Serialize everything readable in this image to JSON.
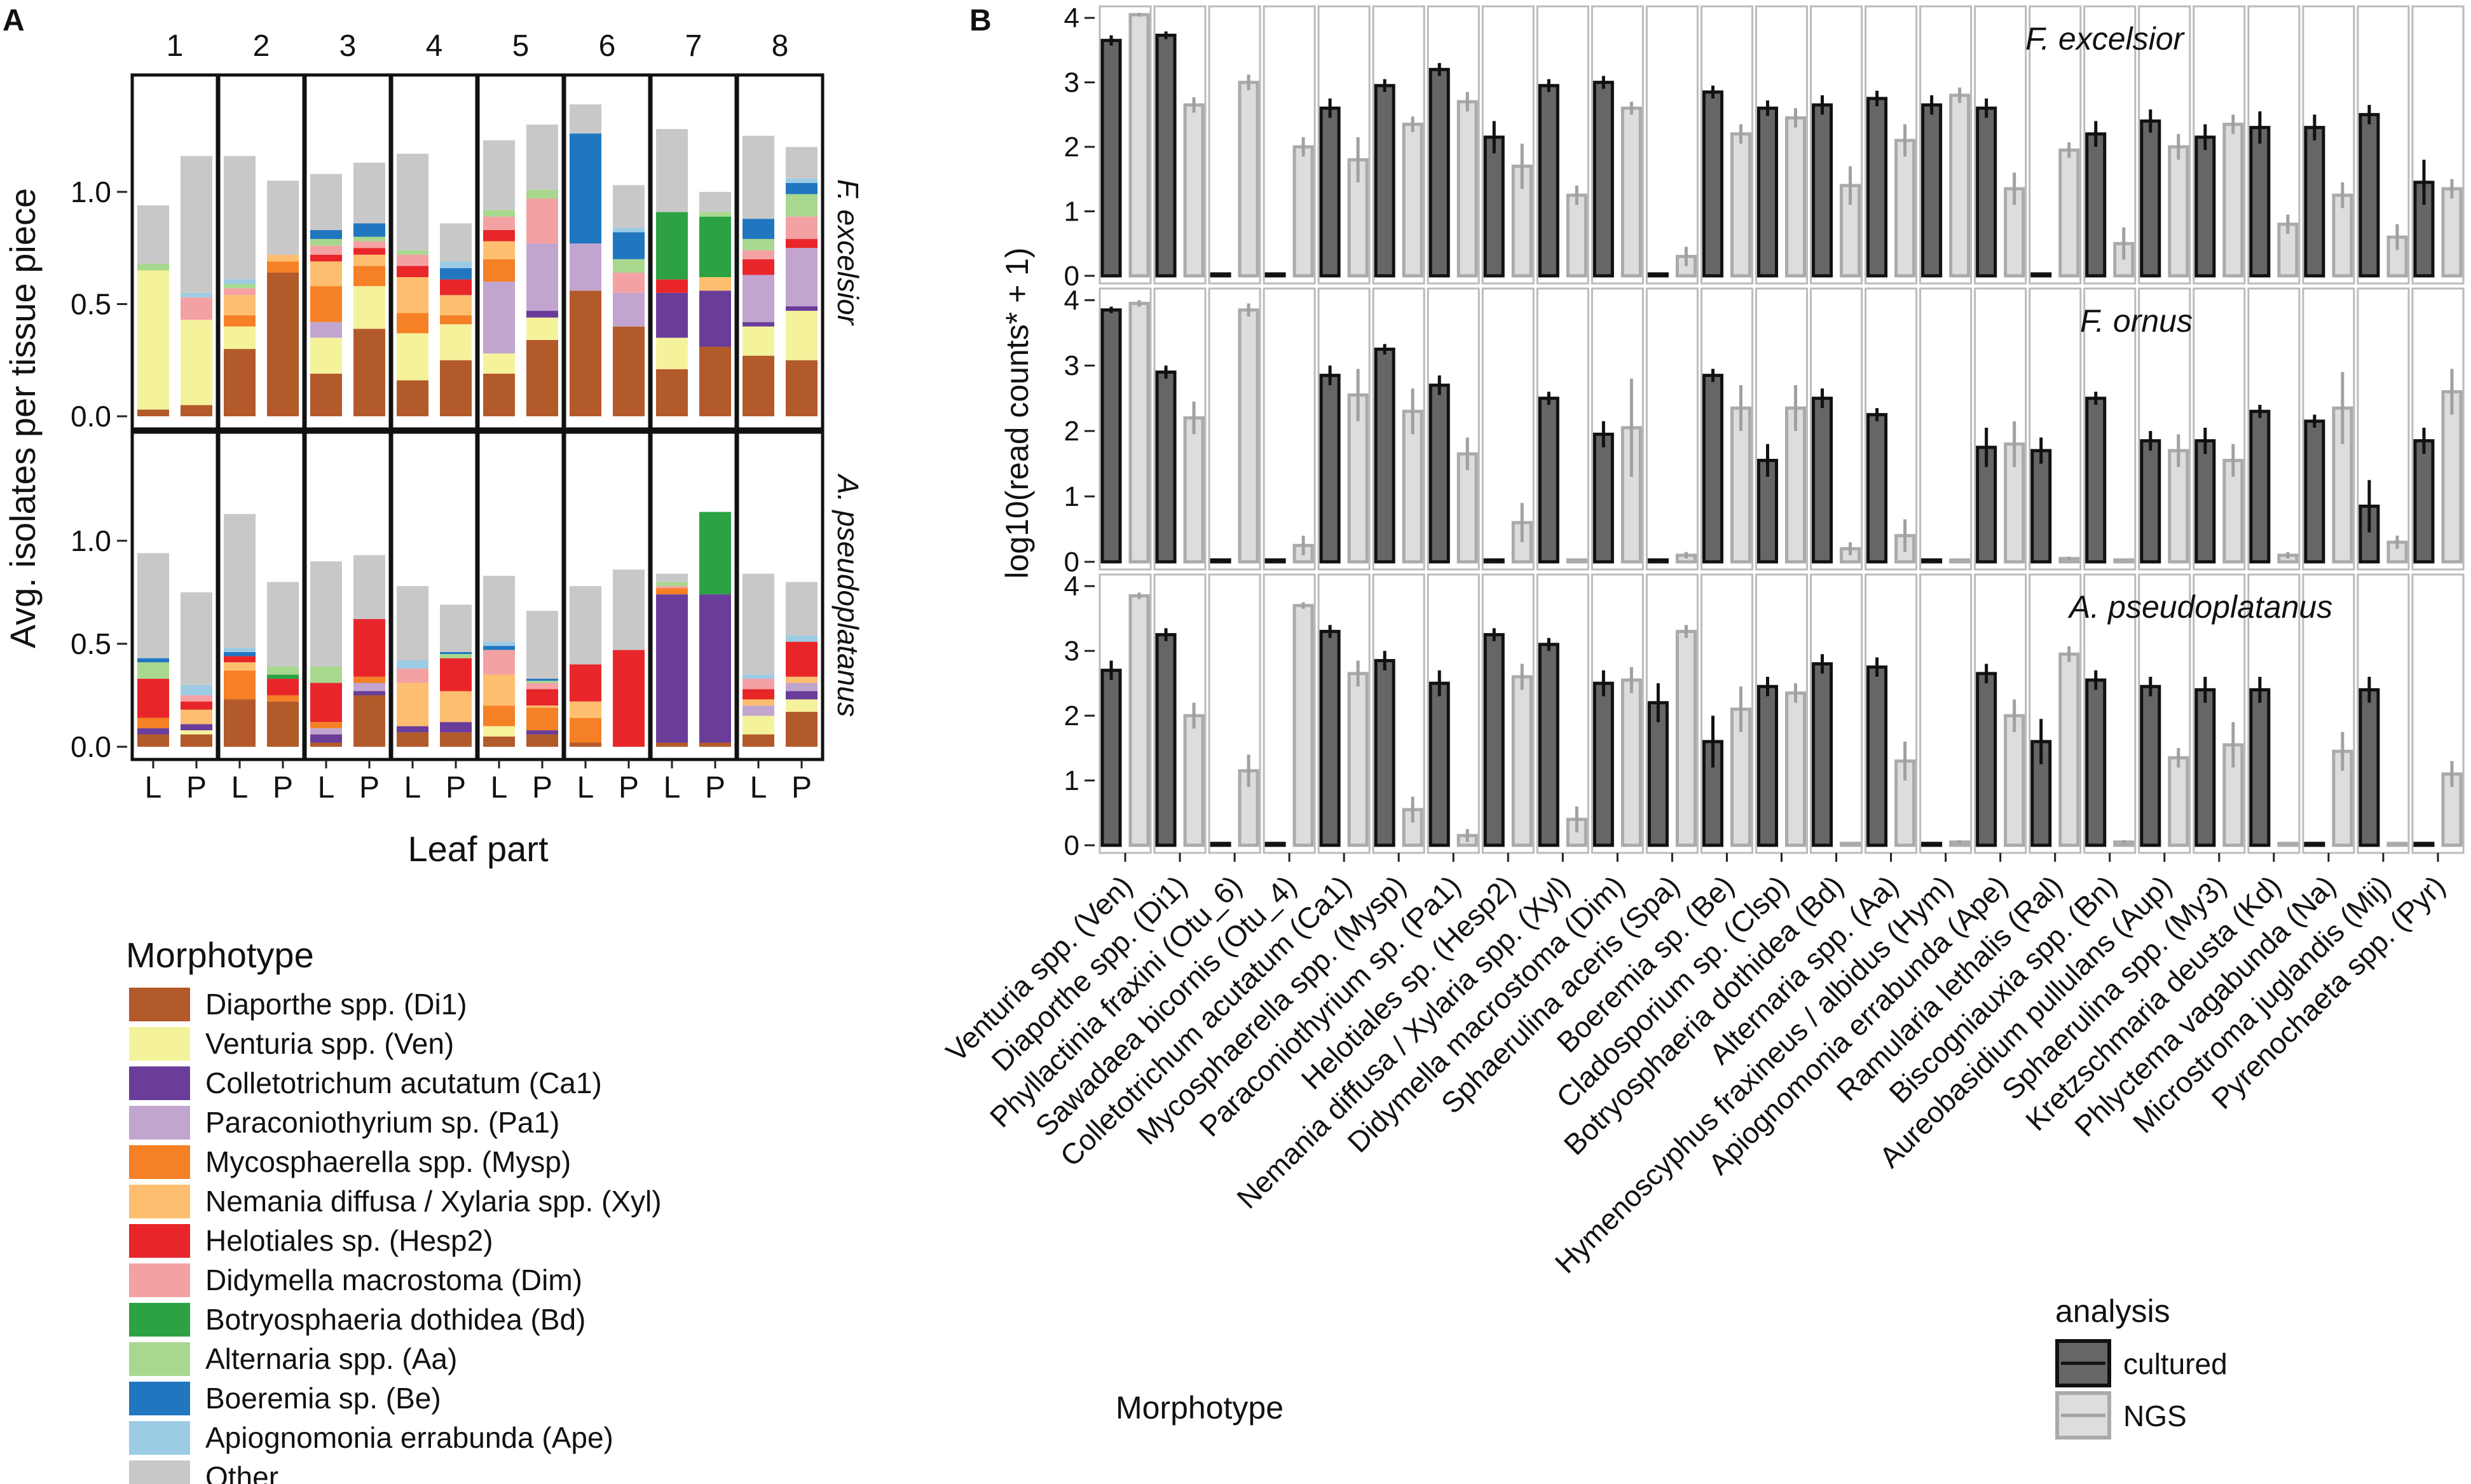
{
  "chart_data": [
    {
      "panel": "A",
      "type": "bar",
      "stacked": true,
      "ylabel": "Avg. isolates per tissue piece",
      "xlabel": "Leaf part",
      "ylim": [
        0,
        1.45
      ],
      "yticks": [
        "0.0",
        "0.5",
        "1.0"
      ],
      "facet_columns": [
        "1",
        "2",
        "3",
        "4",
        "5",
        "6",
        "7",
        "8"
      ],
      "facet_rows": [
        "F. excelsior",
        "A. pseudoplatanus"
      ],
      "x_categories": [
        "L",
        "P"
      ],
      "legend_title": "Morphotype",
      "morphotypes": [
        {
          "label": "Diaporthe spp. (Di1)",
          "color": "#B35A2A"
        },
        {
          "label": "Venturia spp. (Ven)",
          "color": "#F5F29C"
        },
        {
          "label": "Colletotrichum acutatum (Ca1)",
          "color": "#6A3D9A"
        },
        {
          "label": "Paraconiothyrium sp. (Pa1)",
          "color": "#C2A5CF"
        },
        {
          "label": "Mycosphaerella spp. (Mysp)",
          "color": "#F58025"
        },
        {
          "label": "Nemania diffusa / Xylaria spp. (Xyl)",
          "color": "#FDBF6F"
        },
        {
          "label": "Helotiales sp. (Hesp2)",
          "color": "#E8262A"
        },
        {
          "label": "Didymella macrostoma (Dim)",
          "color": "#F4A1A4"
        },
        {
          "label": "Botryosphaeria dothidea (Bd)",
          "color": "#2CA244"
        },
        {
          "label": "Alternaria spp. (Aa)",
          "color": "#A8D88E"
        },
        {
          "label": "Boeremia sp. (Be)",
          "color": "#2176C0"
        },
        {
          "label": "Apiognomonia errabunda (Ape)",
          "color": "#9CCBE4"
        },
        {
          "label": "Other",
          "color": "#C8C8C8"
        }
      ],
      "stacks_note": "segment values listed bottom-up in morphotype order; L then P for each numbered site",
      "stacks": {
        "F. excelsior": [
          [
            [
              0.03,
              0.62,
              0,
              0,
              0,
              0,
              0,
              0,
              0,
              0.03,
              0,
              0,
              0.26
            ],
            [
              0.05,
              0.38,
              0,
              0,
              0,
              0,
              0,
              0.1,
              0,
              0,
              0,
              0.02,
              0.61
            ]
          ],
          [
            [
              0.3,
              0.1,
              0,
              0,
              0.05,
              0.09,
              0,
              0.03,
              0,
              0.02,
              0,
              0.02,
              0.55
            ],
            [
              0.64,
              0,
              0,
              0,
              0.05,
              0.03,
              0,
              0,
              0,
              0,
              0,
              0,
              0.33
            ]
          ],
          [
            [
              0.19,
              0.16,
              0,
              0.07,
              0.16,
              0.11,
              0.03,
              0.04,
              0,
              0.03,
              0.04,
              0,
              0.25
            ],
            [
              0.39,
              0.19,
              0,
              0,
              0.09,
              0.05,
              0.03,
              0.03,
              0,
              0.02,
              0.06,
              0,
              0.27
            ]
          ],
          [
            [
              0.16,
              0.21,
              0,
              0,
              0.09,
              0.16,
              0.05,
              0.05,
              0,
              0.02,
              0,
              0,
              0.43
            ],
            [
              0.25,
              0.16,
              0,
              0,
              0.04,
              0.09,
              0.07,
              0,
              0,
              0,
              0.05,
              0.03,
              0.17
            ]
          ],
          [
            [
              0.19,
              0.09,
              0,
              0.32,
              0.1,
              0.08,
              0.05,
              0.06,
              0,
              0.03,
              0,
              0,
              0.31
            ],
            [
              0.34,
              0.1,
              0.03,
              0.3,
              0,
              0,
              0,
              0.2,
              0,
              0.04,
              0,
              0,
              0.29
            ]
          ],
          [
            [
              0.56,
              0,
              0,
              0.21,
              0,
              0,
              0,
              0,
              0,
              0,
              0.49,
              0,
              0.13
            ],
            [
              0.4,
              0,
              0,
              0.15,
              0,
              0,
              0,
              0.09,
              0,
              0.06,
              0.12,
              0.02,
              0.19
            ]
          ],
          [
            [
              0.21,
              0.14,
              0.2,
              0,
              0,
              0,
              0.06,
              0,
              0.3,
              0,
              0,
              0,
              0.37
            ],
            [
              0.31,
              0,
              0.25,
              0,
              0,
              0.06,
              0,
              0,
              0.27,
              0.02,
              0,
              0,
              0.09
            ]
          ],
          [
            [
              0.27,
              0.13,
              0.02,
              0.21,
              0,
              0,
              0.07,
              0.04,
              0,
              0.05,
              0.09,
              0,
              0.37
            ],
            [
              0.25,
              0.22,
              0.02,
              0.26,
              0,
              0,
              0.04,
              0.1,
              0,
              0.1,
              0.05,
              0.02,
              0.14
            ]
          ]
        ],
        "A. pseudoplatanus": [
          [
            [
              0.06,
              0,
              0.03,
              0,
              0.05,
              0,
              0.19,
              0,
              0,
              0.08,
              0.02,
              0,
              0.51
            ],
            [
              0.06,
              0.02,
              0.03,
              0,
              0,
              0.07,
              0.04,
              0.03,
              0,
              0,
              0,
              0.05,
              0.45
            ]
          ],
          [
            [
              0.23,
              0,
              0,
              0,
              0.14,
              0.04,
              0.03,
              0,
              0,
              0,
              0.02,
              0.02,
              0.65
            ],
            [
              0.22,
              0,
              0,
              0,
              0.03,
              0,
              0.08,
              0,
              0.02,
              0.04,
              0,
              0,
              0.41
            ]
          ],
          [
            [
              0.02,
              0,
              0.04,
              0.03,
              0.03,
              0,
              0.19,
              0,
              0,
              0.08,
              0,
              0,
              0.51
            ],
            [
              0.25,
              0,
              0.02,
              0.04,
              0.03,
              0,
              0.28,
              0,
              0,
              0,
              0,
              0,
              0.31
            ]
          ],
          [
            [
              0.07,
              0,
              0.03,
              0,
              0,
              0.21,
              0,
              0.07,
              0,
              0,
              0,
              0.04,
              0.36
            ],
            [
              0.07,
              0,
              0.05,
              0,
              0,
              0.15,
              0.16,
              0,
              0,
              0.02,
              0.01,
              0,
              0.23
            ]
          ],
          [
            [
              0.05,
              0.05,
              0,
              0,
              0.1,
              0.15,
              0,
              0.12,
              0,
              0,
              0.02,
              0.02,
              0.32
            ],
            [
              0.06,
              0,
              0.02,
              0,
              0.11,
              0.01,
              0.08,
              0.03,
              0,
              0.01,
              0.01,
              0,
              0.33
            ]
          ],
          [
            [
              0.02,
              0,
              0,
              0,
              0.12,
              0.08,
              0.18,
              0,
              0,
              0,
              0,
              0,
              0.38
            ],
            [
              0,
              0,
              0,
              0,
              0,
              0,
              0.47,
              0,
              0,
              0,
              0,
              0,
              0.39
            ]
          ],
          [
            [
              0.02,
              0,
              0.72,
              0,
              0.03,
              0,
              0,
              0.01,
              0,
              0.02,
              0,
              0,
              0.04
            ],
            [
              0.02,
              0,
              0.72,
              0,
              0,
              0,
              0,
              0,
              0.4,
              0,
              0,
              0,
              0
            ]
          ],
          [
            [
              0.06,
              0.09,
              0,
              0.05,
              0,
              0.03,
              0.05,
              0.05,
              0,
              0,
              0,
              0.02,
              0.49
            ],
            [
              0.17,
              0.06,
              0.04,
              0.04,
              0,
              0.03,
              0.17,
              0,
              0,
              0,
              0,
              0.03,
              0.26
            ]
          ]
        ]
      }
    },
    {
      "panel": "B",
      "type": "bar",
      "ylabel": "log10(read counts* + 1)",
      "xlabel": "Morphotype",
      "ylim": [
        0,
        4.15
      ],
      "yticks": [
        "0",
        "1",
        "2",
        "3",
        "4"
      ],
      "legend_title": "analysis",
      "series_names": [
        "cultured",
        "NGS"
      ],
      "series_colors": {
        "cultured_fill": "#666666",
        "cultured_edge": "#111111",
        "ngs_fill": "#DDDDDD",
        "ngs_edge": "#AAAAAA",
        "cultured_err": "#111111",
        "ngs_err": "#A0A0A0"
      },
      "categories": [
        "Venturia spp. (Ven)",
        "Diaporthe spp. (Di1)",
        "Phyllactinia fraxini (Otu_6)",
        "Sawadaea bicornis (Otu_4)",
        "Colletotrichum acutatum (Ca1)",
        "Mycosphaerella spp. (Mysp)",
        "Paraconiothyrium sp. (Pa1)",
        "Helotiales sp. (Hesp2)",
        "Nemania diffusa / Xylaria spp. (Xyl)",
        "Didymella macrostoma (Dim)",
        "Sphaerulina aceris (Spa)",
        "Boeremia sp. (Be)",
        "Cladosporium sp. (Clsp)",
        "Botryosphaeria dothidea (Bd)",
        "Alternaria spp. (Aa)",
        "Hymenoscyphus fraxineus / albidus (Hym)",
        "Apiognomonia errabunda (Ape)",
        "Ramularia lethalis (Ral)",
        "Biscogniauxia spp. (Bn)",
        "Aureobasidium pullulans (Aup)",
        "Sphaerulina spp. (My3)",
        "Kretzschmaria deusta (Kd)",
        "Phlyctema vagabunda (Na)",
        "Microstroma juglandis (Mij)",
        "Pyrenochaeta spp. (Pyr)"
      ],
      "facets": [
        {
          "label": "F. excelsior",
          "cultured": [
            3.65,
            3.73,
            0,
            0,
            2.6,
            2.95,
            3.2,
            2.15,
            2.95,
            3.0,
            0,
            2.85,
            2.6,
            2.65,
            2.75,
            2.65,
            2.6,
            0,
            2.2,
            2.4,
            2.15,
            2.3,
            2.3,
            2.5,
            1.45
          ],
          "cultured_err": [
            0.08,
            0.06,
            0,
            0,
            0.15,
            0.1,
            0.1,
            0.25,
            0.1,
            0.1,
            0,
            0.1,
            0.12,
            0.15,
            0.12,
            0.15,
            0.15,
            0,
            0.2,
            0.18,
            0.2,
            0.25,
            0.2,
            0.15,
            0.35
          ],
          "ngs": [
            4.05,
            2.65,
            3.0,
            2.0,
            1.8,
            2.35,
            2.7,
            1.7,
            1.25,
            2.6,
            0.3,
            2.2,
            2.45,
            1.4,
            2.1,
            2.8,
            1.35,
            1.95,
            0.5,
            2.0,
            2.35,
            0.8,
            1.25,
            0.6,
            1.35
          ],
          "ngs_err": [
            0.03,
            0.12,
            0.12,
            0.15,
            0.35,
            0.12,
            0.15,
            0.35,
            0.15,
            0.1,
            0.15,
            0.15,
            0.15,
            0.3,
            0.25,
            0.12,
            0.25,
            0.12,
            0.25,
            0.2,
            0.15,
            0.15,
            0.2,
            0.2,
            0.15
          ]
        },
        {
          "label": "F. ornus",
          "cultured": [
            3.85,
            2.9,
            0,
            0,
            2.85,
            3.25,
            2.7,
            0,
            2.5,
            1.95,
            0,
            2.85,
            1.55,
            2.5,
            2.25,
            0,
            1.75,
            1.7,
            2.5,
            1.85,
            1.85,
            2.3,
            2.15,
            0.85,
            1.85
          ],
          "cultured_err": [
            0.05,
            0.1,
            0,
            0,
            0.15,
            0.08,
            0.15,
            0,
            0.1,
            0.2,
            0,
            0.1,
            0.25,
            0.15,
            0.1,
            0,
            0.3,
            0.2,
            0.1,
            0.15,
            0.2,
            0.1,
            0.1,
            0.4,
            0.2
          ],
          "ngs": [
            3.95,
            2.2,
            3.85,
            0.25,
            2.55,
            2.3,
            1.65,
            0.6,
            0,
            2.05,
            0.1,
            2.35,
            2.35,
            0.2,
            0.4,
            0,
            1.8,
            0.05,
            0,
            1.7,
            1.55,
            0.1,
            2.35,
            0.3,
            2.6
          ],
          "ngs_err": [
            0.05,
            0.25,
            0.1,
            0.15,
            0.4,
            0.35,
            0.25,
            0.3,
            0,
            0.75,
            0.05,
            0.35,
            0.35,
            0.1,
            0.25,
            0,
            0.35,
            0.03,
            0,
            0.25,
            0.25,
            0.05,
            0.55,
            0.1,
            0.35
          ]
        },
        {
          "label": "A. pseudoplatanus",
          "cultured": [
            2.7,
            3.25,
            0,
            0,
            3.3,
            2.85,
            2.5,
            3.25,
            3.1,
            2.5,
            2.2,
            1.6,
            2.45,
            2.8,
            2.75,
            0,
            2.65,
            1.6,
            2.55,
            2.45,
            2.4,
            2.4,
            0,
            2.4,
            0
          ],
          "cultured_err": [
            0.15,
            0.1,
            0,
            0,
            0.1,
            0.15,
            0.2,
            0.1,
            0.1,
            0.2,
            0.3,
            0.4,
            0.15,
            0.15,
            0.15,
            0,
            0.15,
            0.35,
            0.15,
            0.15,
            0.2,
            0.2,
            0,
            0.2,
            0
          ],
          "ngs": [
            3.85,
            2.0,
            1.15,
            3.7,
            2.65,
            0.55,
            0.15,
            2.6,
            0.4,
            2.55,
            3.3,
            2.1,
            2.35,
            0,
            1.3,
            0.05,
            2.0,
            2.95,
            0.05,
            1.35,
            1.55,
            0,
            1.45,
            0,
            1.1
          ],
          "ngs_err": [
            0.05,
            0.2,
            0.25,
            0.05,
            0.2,
            0.2,
            0.1,
            0.2,
            0.2,
            0.2,
            0.1,
            0.35,
            0.15,
            0,
            0.3,
            0.03,
            0.25,
            0.12,
            0.03,
            0.15,
            0.35,
            0,
            0.3,
            0,
            0.2
          ]
        }
      ]
    }
  ]
}
